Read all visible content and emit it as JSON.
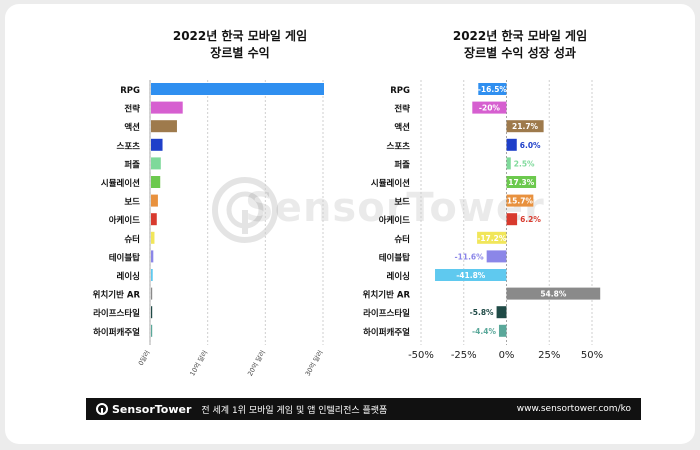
{
  "left_chart": {
    "title_line1": "2022년 한국 모바일 게임",
    "title_line2": "장르별 수익",
    "xticks": [
      "0달러",
      "10억 달러",
      "20억 달러",
      "30억 달러"
    ]
  },
  "right_chart": {
    "title_line1": "2022년 한국 모바일 게임",
    "title_line2": "장르별 수익 성장 성과",
    "xticks": [
      "-50%",
      "-25%",
      "0%",
      "25%",
      "50%"
    ]
  },
  "watermark_text": "SensorTower",
  "footer": {
    "brand": "SensorTower",
    "tagline": "전 세계 1위 모바일 게임 및 앱 인텔리전스 플랫폼",
    "url": "www.sensortower.com/ko"
  },
  "chart_data": [
    {
      "type": "bar",
      "orientation": "horizontal",
      "title": "2022년 한국 모바일 게임 장르별 수익",
      "categories": [
        "RPG",
        "전략",
        "액션",
        "스포츠",
        "퍼즐",
        "시뮬레이션",
        "보드",
        "아케이드",
        "슈터",
        "테이블탑",
        "레이싱",
        "위치기반 AR",
        "라이프스타일",
        "하이퍼캐주얼"
      ],
      "values": [
        3.0,
        0.55,
        0.45,
        0.2,
        0.17,
        0.16,
        0.12,
        0.1,
        0.06,
        0.04,
        0.03,
        0.015,
        0.01,
        0.005
      ],
      "colors": [
        "#2f8ff0",
        "#d65fd0",
        "#9e7a4c",
        "#1f3fc9",
        "#7ed99a",
        "#6cc94e",
        "#e8913e",
        "#d83a2e",
        "#f1e65a",
        "#8b86e8",
        "#5fc9ef",
        "#8a8a8a",
        "#1f4a46",
        "#5aa89a"
      ],
      "xlim": [
        0,
        3.0
      ],
      "xunit": "십억 달러",
      "grid": true
    },
    {
      "type": "bar",
      "orientation": "horizontal",
      "title": "2022년 한국 모바일 게임 장르별 수익 성장 성과",
      "categories": [
        "RPG",
        "전략",
        "액션",
        "스포츠",
        "퍼즐",
        "시뮬레이션",
        "보드",
        "아케이드",
        "슈터",
        "테이블탑",
        "레이싱",
        "위치기반 AR",
        "라이프스타일",
        "하이퍼캐주얼"
      ],
      "values": [
        -16.5,
        -20,
        21.7,
        6.0,
        2.5,
        17.3,
        15.7,
        6.2,
        -17.2,
        -11.6,
        -41.8,
        54.8,
        -5.8,
        -4.4
      ],
      "labels": [
        "-16.5%",
        "-20%",
        "21.7%",
        "6.0%",
        "2.5%",
        "17.3%",
        "15.7%",
        "6.2%",
        "-17.2%",
        "-11.6%",
        "-41.8%",
        "54.8%",
        "-5.8%",
        "-4.4%"
      ],
      "colors": [
        "#2f8ff0",
        "#d65fd0",
        "#9e7a4c",
        "#1f3fc9",
        "#7ed99a",
        "#6cc94e",
        "#e8913e",
        "#d83a2e",
        "#f1e65a",
        "#8b86e8",
        "#5fc9ef",
        "#8a8a8a",
        "#1f4a46",
        "#5aa89a"
      ],
      "label_colors": [
        "#ffffff",
        "#ffffff",
        "#ffffff",
        "#1f3fc9",
        "#7ed99a",
        "#ffffff",
        "#ffffff",
        "#d83a2e",
        "#ffffff",
        "#8b86e8",
        "#ffffff",
        "#ffffff",
        "#1f4a46",
        "#5aa89a"
      ],
      "xlim": [
        -50,
        50
      ],
      "xticks": [
        -50,
        -25,
        0,
        25,
        50
      ],
      "grid": true
    }
  ]
}
